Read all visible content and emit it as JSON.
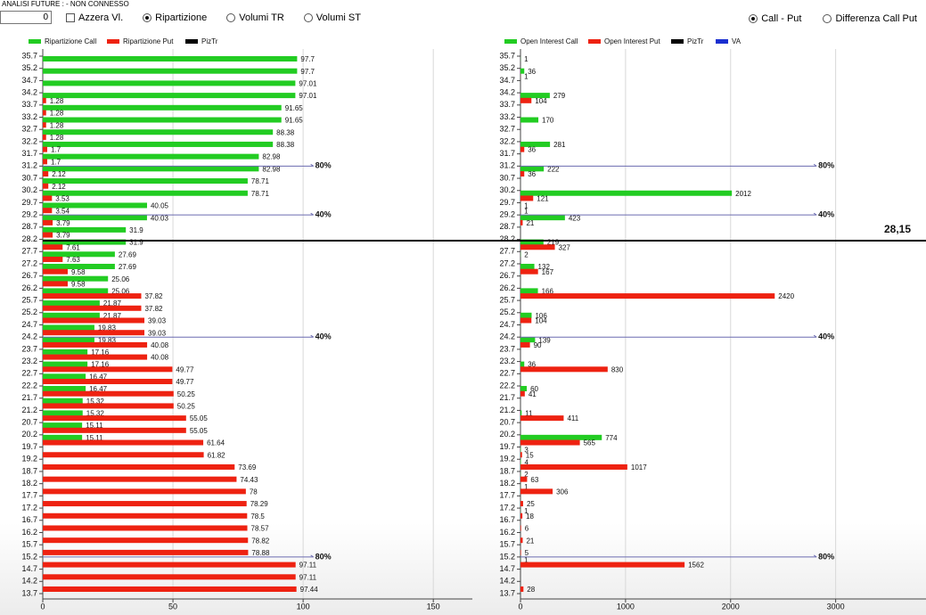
{
  "toolbar": {
    "title": "ANALISI FUTURE : - NON CONNESSO",
    "input": "0",
    "checkbox": {
      "label": "Azzera Vl.",
      "checked": false
    },
    "radios": [
      {
        "label": "Ripartizione",
        "checked": true
      },
      {
        "label": "Volumi TR",
        "checked": false
      },
      {
        "label": "Volumi ST",
        "checked": false
      }
    ],
    "radios_right": [
      {
        "label": "Call - Put",
        "checked": true
      },
      {
        "label": "Differenza Call Put",
        "checked": false
      }
    ]
  },
  "price_line": {
    "value": 28.15,
    "label": "28,15",
    "color": "#000000"
  },
  "chart_data": [
    {
      "type": "bar",
      "orientation": "horizontal",
      "categories": [
        "35.7",
        "35.2",
        "34.7",
        "34.2",
        "33.7",
        "33.2",
        "32.7",
        "32.2",
        "31.7",
        "31.2",
        "30.7",
        "30.2",
        "29.7",
        "29.2",
        "28.7",
        "28.2",
        "27.7",
        "27.2",
        "26.7",
        "26.2",
        "25.7",
        "25.2",
        "24.7",
        "24.2",
        "23.7",
        "23.2",
        "22.7",
        "22.2",
        "21.7",
        "21.2",
        "20.7",
        "20.2",
        "19.7",
        "19.2",
        "18.7",
        "18.2",
        "17.7",
        "17.2",
        "16.7",
        "16.2",
        "15.7",
        "15.2",
        "14.7",
        "14.2",
        "13.7"
      ],
      "series": [
        {
          "name": "Ripartizione Call",
          "color": "#22cc22",
          "values": [
            97.7,
            97.7,
            97.01,
            97.01,
            91.65,
            91.65,
            88.38,
            88.38,
            82.98,
            82.98,
            78.71,
            78.71,
            40.05,
            40.03,
            31.9,
            31.9,
            27.69,
            27.69,
            25.06,
            25.06,
            21.87,
            21.87,
            19.83,
            19.83,
            17.16,
            17.16,
            16.47,
            16.47,
            15.32,
            15.32,
            15.11,
            15.11,
            null,
            null,
            null,
            null,
            null,
            null,
            null,
            null,
            null,
            null,
            null,
            null,
            null
          ]
        },
        {
          "name": "Ripartizione Put",
          "color": "#ee2211",
          "values": [
            null,
            null,
            null,
            null,
            1.28,
            1.28,
            1.28,
            1.28,
            1.7,
            1.7,
            2.12,
            2.12,
            3.53,
            3.54,
            3.79,
            3.79,
            7.61,
            7.63,
            9.58,
            9.58,
            37.82,
            37.82,
            39.03,
            39.03,
            40.08,
            40.08,
            49.77,
            49.77,
            50.25,
            50.25,
            55.05,
            55.05,
            61.64,
            61.82,
            73.69,
            74.43,
            78,
            78.29,
            78.5,
            78.57,
            78.82,
            78.88,
            97.11,
            97.11,
            97.44
          ]
        },
        {
          "name": "PizTr",
          "color": "#000000"
        }
      ],
      "xlim": [
        0,
        165
      ],
      "xticks": [
        0,
        50,
        100,
        150
      ],
      "grid": true,
      "levels": [
        {
          "value": 31.2,
          "label": "80%"
        },
        {
          "value": 29.2,
          "label": "40%"
        },
        {
          "value": 24.2,
          "label": "40%"
        },
        {
          "value": 15.2,
          "label": "80%"
        }
      ],
      "level_color": "#6b6bb0"
    },
    {
      "type": "bar",
      "orientation": "horizontal",
      "categories": [
        "35.7",
        "35.2",
        "34.7",
        "34.2",
        "33.7",
        "33.2",
        "32.7",
        "32.2",
        "31.7",
        "31.2",
        "30.7",
        "30.2",
        "29.7",
        "29.2",
        "28.7",
        "28.2",
        "27.7",
        "27.2",
        "26.7",
        "26.2",
        "25.7",
        "25.2",
        "24.7",
        "24.2",
        "23.7",
        "23.2",
        "22.7",
        "22.2",
        "21.7",
        "21.2",
        "20.7",
        "20.2",
        "19.7",
        "19.2",
        "18.7",
        "18.2",
        "17.7",
        "17.2",
        "16.7",
        "16.2",
        "15.7",
        "15.2",
        "14.7",
        "14.2",
        "13.7"
      ],
      "series": [
        {
          "name": "Open Interest Call",
          "color": "#22cc22",
          "values": [
            1,
            36,
            null,
            279,
            null,
            170,
            null,
            281,
            null,
            222,
            null,
            2012,
            1,
            423,
            null,
            219,
            2,
            132,
            null,
            166,
            null,
            106,
            null,
            139,
            null,
            36,
            null,
            60,
            null,
            11,
            null,
            774,
            3,
            4,
            2,
            1,
            null,
            1,
            null,
            null,
            null,
            1,
            null,
            null,
            null
          ]
        },
        {
          "name": "Open Interest Put",
          "color": "#ee2211",
          "values": [
            null,
            null,
            1,
            null,
            104,
            null,
            null,
            null,
            36,
            null,
            36,
            null,
            121,
            1,
            21,
            null,
            327,
            null,
            167,
            null,
            2420,
            null,
            104,
            null,
            90,
            null,
            830,
            null,
            41,
            null,
            411,
            null,
            565,
            15,
            1017,
            63,
            306,
            25,
            18,
            6,
            21,
            5,
            1562,
            null,
            28
          ]
        },
        {
          "name": "PizTr",
          "color": "#000000"
        },
        {
          "name": "VA",
          "color": "#1a2fd0"
        }
      ],
      "xlim": [
        0,
        3860
      ],
      "xticks": [
        0,
        1000,
        2000,
        3000
      ],
      "grid": true,
      "levels": [
        {
          "value": 31.2,
          "label": "80%"
        },
        {
          "value": 29.2,
          "label": "40%"
        },
        {
          "value": 24.2,
          "label": "40%"
        },
        {
          "value": 15.2,
          "label": "80%"
        }
      ],
      "level_color": "#6b6bb0"
    }
  ]
}
